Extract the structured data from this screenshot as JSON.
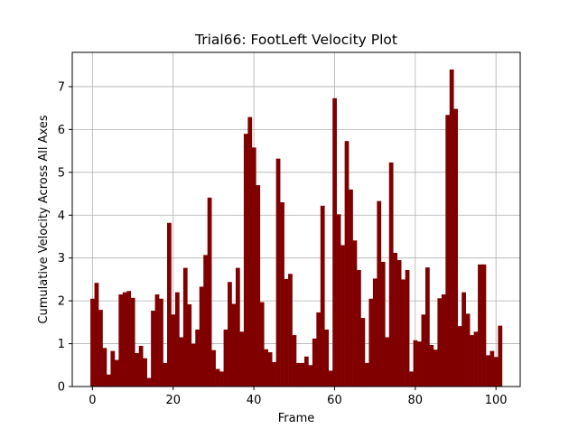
{
  "chart_data": {
    "type": "bar",
    "title": "Trial66: FootLeft Velocity Plot",
    "xlabel": "Frame",
    "ylabel": "Cumulative Velocity Across All Axes",
    "xlim": [
      -5,
      106
    ],
    "ylim": [
      0,
      7.8
    ],
    "x_ticks": [
      0,
      20,
      40,
      60,
      80,
      100
    ],
    "y_ticks": [
      0,
      1,
      2,
      3,
      4,
      5,
      6,
      7
    ],
    "grid": true,
    "bar_color": "#800000",
    "x": [
      0,
      1,
      2,
      3,
      4,
      5,
      6,
      7,
      8,
      9,
      10,
      11,
      12,
      13,
      14,
      15,
      16,
      17,
      18,
      19,
      20,
      21,
      22,
      23,
      24,
      25,
      26,
      27,
      28,
      29,
      30,
      31,
      32,
      33,
      34,
      35,
      36,
      37,
      38,
      39,
      40,
      41,
      42,
      43,
      44,
      45,
      46,
      47,
      48,
      49,
      50,
      51,
      52,
      53,
      54,
      55,
      56,
      57,
      58,
      59,
      60,
      61,
      62,
      63,
      64,
      65,
      66,
      67,
      68,
      69,
      70,
      71,
      72,
      73,
      74,
      75,
      76,
      77,
      78,
      79,
      80,
      81,
      82,
      83,
      84,
      85,
      86,
      87,
      88,
      89,
      90,
      91,
      92,
      93,
      94,
      95,
      96,
      97,
      98,
      99,
      100,
      101
    ],
    "values": [
      2.05,
      2.42,
      1.79,
      0.9,
      0.28,
      0.83,
      0.62,
      2.15,
      2.2,
      2.23,
      2.07,
      0.78,
      0.95,
      0.66,
      0.2,
      1.77,
      2.15,
      2.05,
      0.55,
      3.82,
      1.68,
      2.2,
      1.15,
      2.77,
      1.92,
      1.0,
      1.33,
      2.33,
      3.07,
      4.41,
      0.85,
      0.41,
      0.35,
      1.33,
      2.44,
      1.93,
      2.77,
      1.28,
      5.9,
      6.29,
      5.58,
      4.7,
      1.97,
      0.87,
      0.8,
      0.57,
      5.32,
      4.3,
      2.51,
      2.63,
      1.2,
      0.55,
      0.55,
      0.7,
      0.5,
      1.12,
      1.73,
      4.22,
      1.33,
      0.37,
      6.73,
      4.02,
      3.3,
      5.73,
      4.6,
      3.41,
      2.72,
      1.6,
      0.55,
      2.05,
      2.52,
      4.33,
      2.91,
      1.15,
      5.23,
      3.12,
      2.95,
      2.5,
      2.72,
      0.35,
      1.08,
      1.05,
      1.68,
      2.78,
      0.97,
      0.86,
      2.06,
      2.15,
      6.34,
      7.4,
      6.48,
      1.41,
      2.2,
      1.7,
      1.2,
      1.28,
      2.85,
      2.85,
      0.73,
      0.83,
      0.69,
      1.42
    ]
  }
}
